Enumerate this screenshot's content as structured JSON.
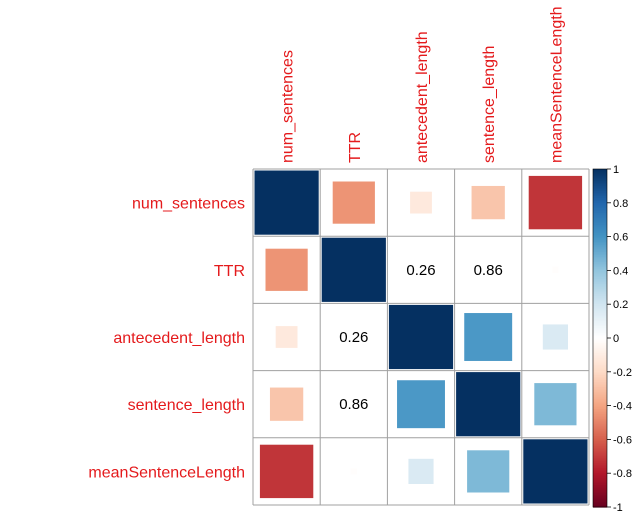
{
  "chart_data": {
    "type": "heatmap",
    "variables": [
      "num_sentences",
      "TTR",
      "antecedent_length",
      "sentence_length",
      "meanSentenceLength"
    ],
    "matrix": [
      [
        1.0,
        -0.45,
        -0.12,
        -0.28,
        -0.72
      ],
      [
        -0.45,
        1.0,
        0.26,
        0.86,
        -0.01
      ],
      [
        -0.12,
        0.26,
        1.0,
        0.58,
        0.16
      ],
      [
        -0.28,
        0.86,
        0.58,
        1.0,
        0.45
      ],
      [
        -0.72,
        -0.01,
        0.16,
        0.45,
        1.0
      ]
    ],
    "number_cells": [
      [
        1,
        2
      ],
      [
        1,
        3
      ],
      [
        2,
        1
      ],
      [
        3,
        1
      ]
    ],
    "number_labels": [
      "0.26",
      "0.86",
      "0.26",
      "0.86"
    ],
    "colorbar_ticks": [
      "1",
      "0.8",
      "0.6",
      "0.4",
      "0.2",
      "0",
      "-0.2",
      "-0.4",
      "-0.6",
      "-0.8",
      "-1"
    ],
    "colorbar_values": [
      1,
      0.8,
      0.6,
      0.4,
      0.2,
      0,
      -0.2,
      -0.4,
      -0.6,
      -0.8,
      -1
    ],
    "range": [
      -1,
      1
    ],
    "glyph": "square",
    "label_color": "#e41a1c",
    "grid_color": "#a0a0a0"
  }
}
